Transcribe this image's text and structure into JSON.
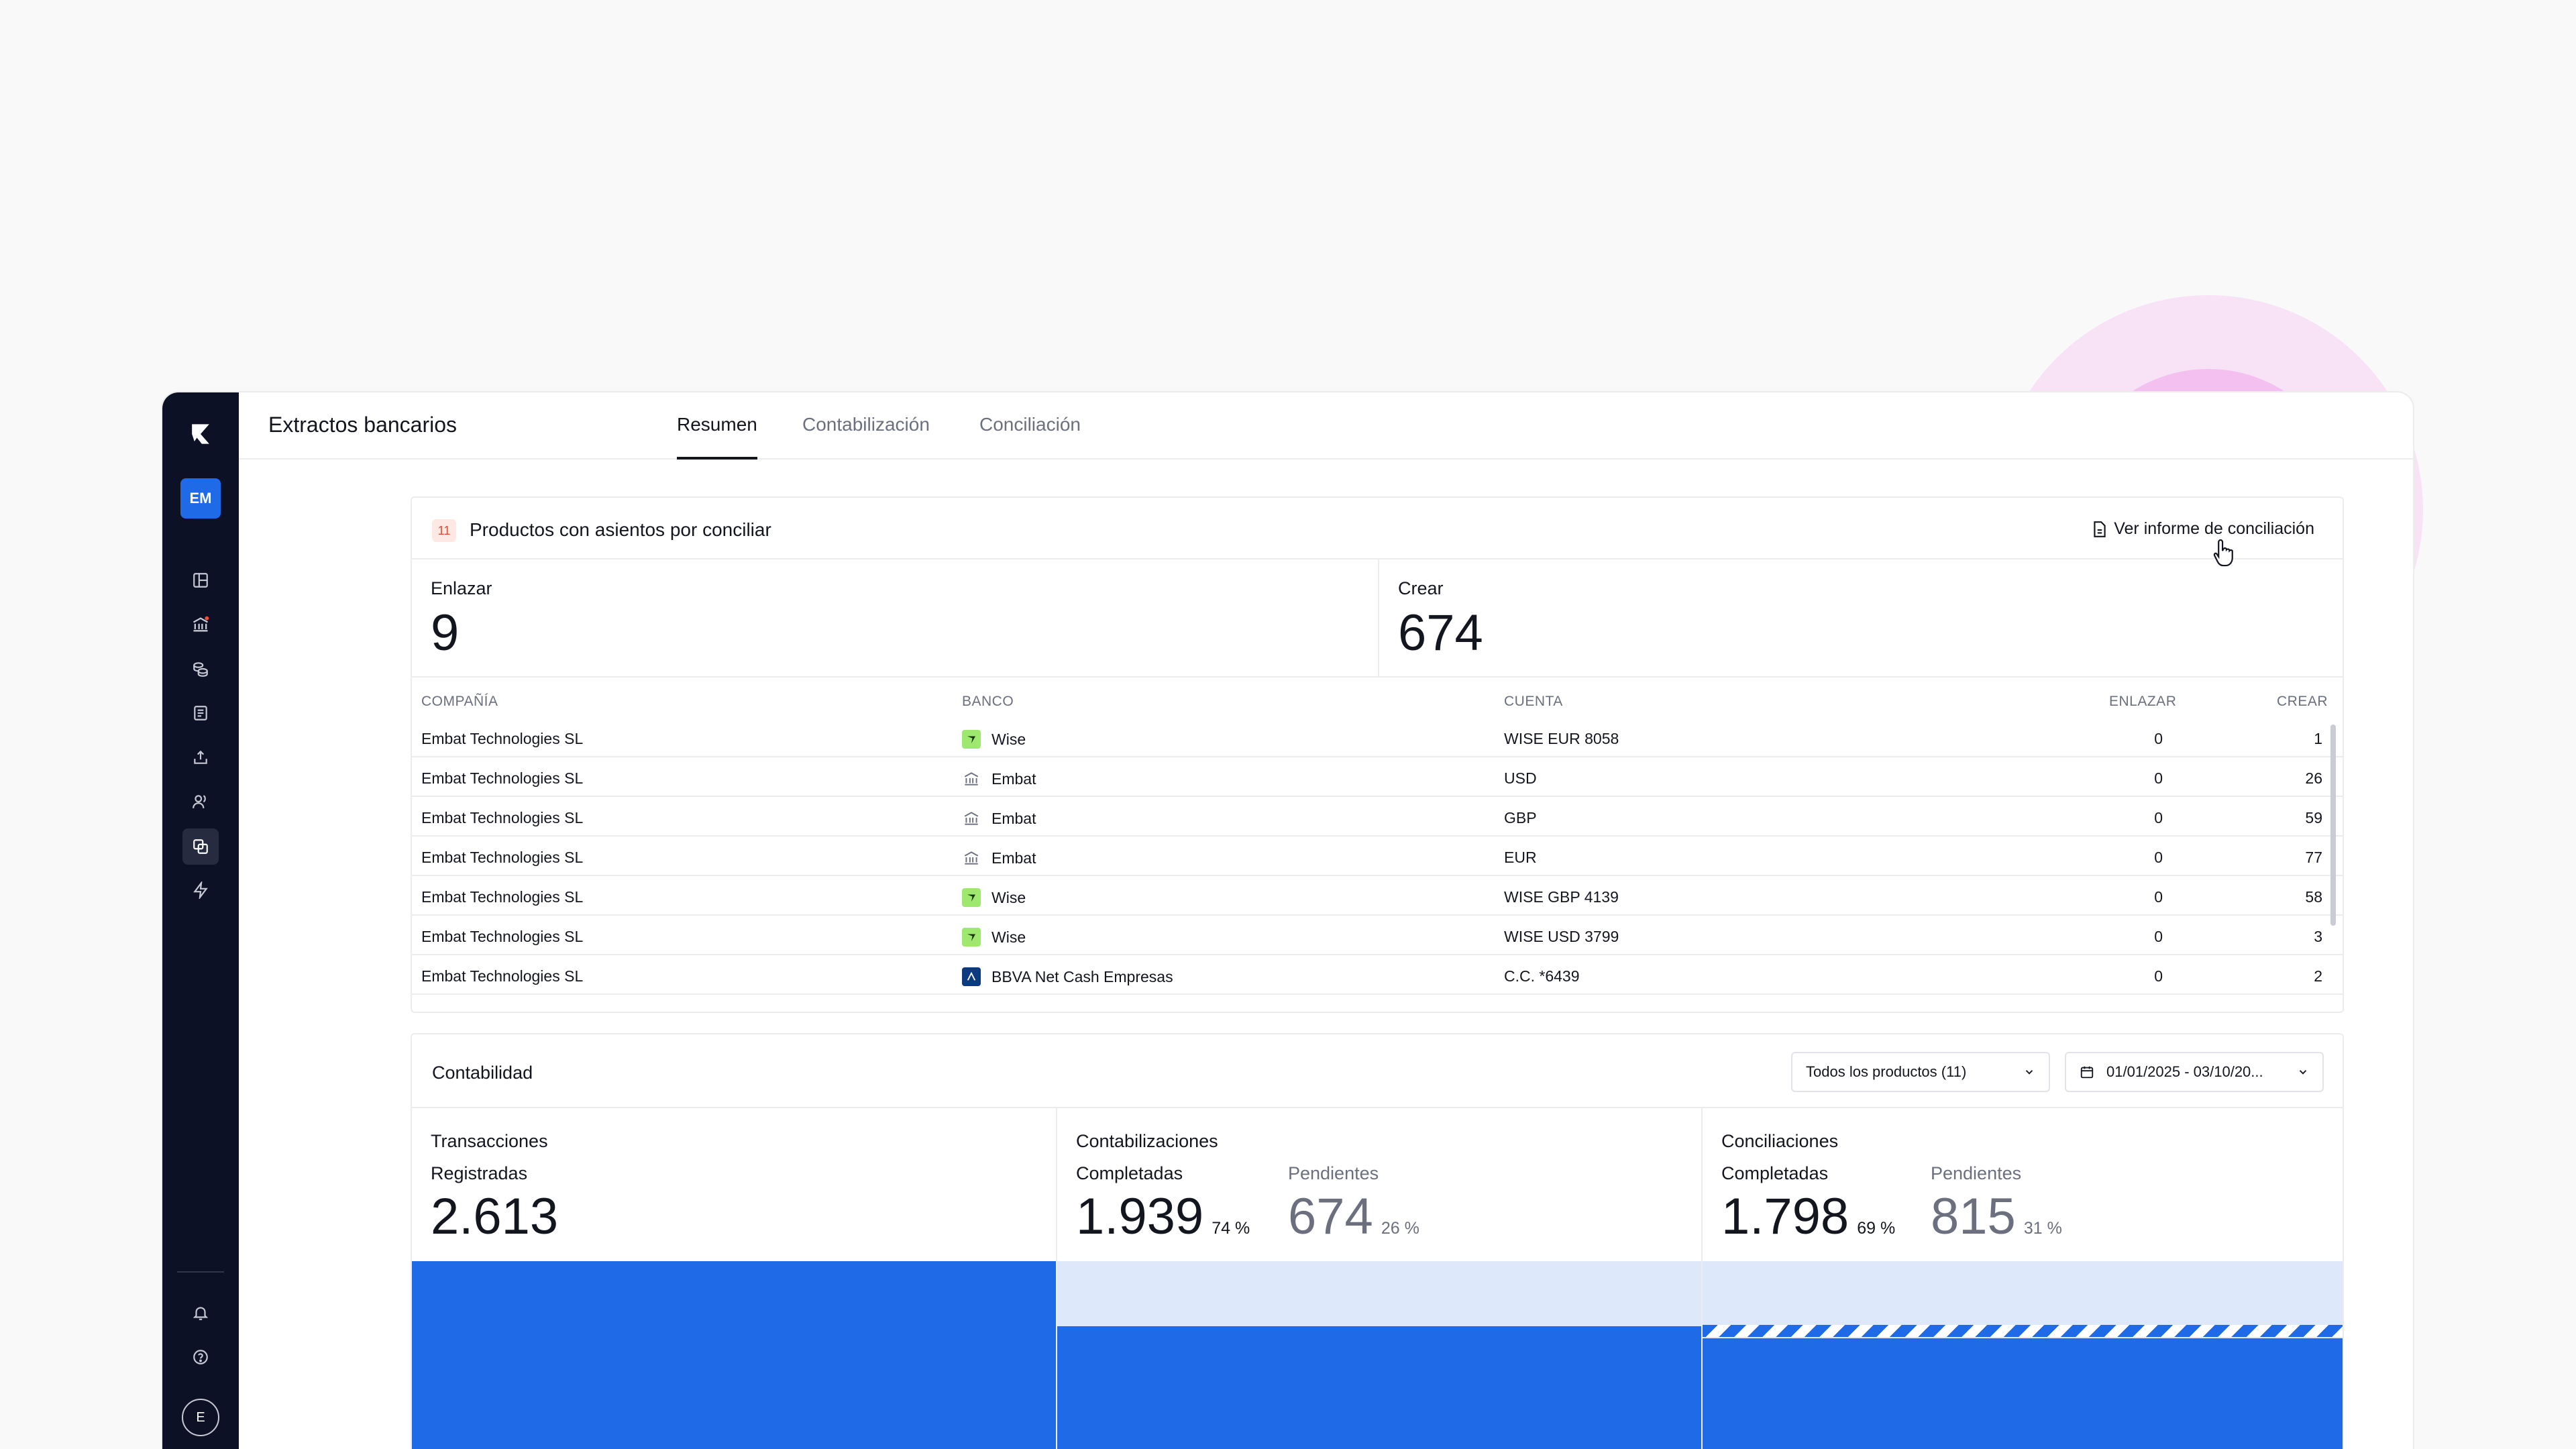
{
  "app": {
    "title": "Extractos bancarios",
    "tabs": [
      {
        "label": "Resumen",
        "active": true
      },
      {
        "label": "Contabilización",
        "active": false
      },
      {
        "label": "Conciliación",
        "active": false
      }
    ],
    "user_initials": "EM",
    "profile_initial": "E"
  },
  "sidebar": {
    "icons": [
      "dashboard-icon",
      "bank-icon",
      "coins-icon",
      "ledger-icon",
      "upload-icon",
      "users-icon",
      "reconcile-icon",
      "bolt-icon"
    ],
    "bottom_icons": [
      "bell-icon",
      "help-icon"
    ]
  },
  "pending": {
    "count": "11",
    "title": "Productos con asientos por conciliar",
    "report_button": "Ver informe de conciliación",
    "link_label": "Enlazar",
    "link_value": "9",
    "create_label": "Crear",
    "create_value": "674"
  },
  "table": {
    "headers": {
      "company": "COMPAÑÍA",
      "bank": "BANCO",
      "account": "CUENTA",
      "link": "ENLAZAR",
      "create": "CREAR"
    },
    "rows": [
      {
        "company": "Embat Technologies SL",
        "bank": "Wise",
        "bank_icon": "wise",
        "account": "WISE EUR 8058",
        "link": "0",
        "create": "1"
      },
      {
        "company": "Embat Technologies SL",
        "bank": "Embat",
        "bank_icon": "bank",
        "account": "USD",
        "link": "0",
        "create": "26"
      },
      {
        "company": "Embat Technologies SL",
        "bank": "Embat",
        "bank_icon": "bank",
        "account": "GBP",
        "link": "0",
        "create": "59"
      },
      {
        "company": "Embat Technologies SL",
        "bank": "Embat",
        "bank_icon": "bank",
        "account": "EUR",
        "link": "0",
        "create": "77"
      },
      {
        "company": "Embat Technologies SL",
        "bank": "Wise",
        "bank_icon": "wise",
        "account": "WISE GBP 4139",
        "link": "0",
        "create": "58"
      },
      {
        "company": "Embat Technologies SL",
        "bank": "Wise",
        "bank_icon": "wise",
        "account": "WISE USD 3799",
        "link": "0",
        "create": "3"
      },
      {
        "company": "Embat Technologies SL",
        "bank": "BBVA Net Cash Empresas",
        "bank_icon": "bbva",
        "account": "C.C. *6439",
        "link": "0",
        "create": "2"
      }
    ]
  },
  "accounting": {
    "title": "Contabilidad",
    "product_filter": "Todos los productos (11)",
    "date_filter": "01/01/2025 - 03/10/20...",
    "transactions": {
      "title": "Transacciones",
      "registered_label": "Registradas",
      "registered_value": "2.613"
    },
    "postings": {
      "title": "Contabilizaciones",
      "completed_label": "Completadas",
      "completed_value": "1.939",
      "completed_pct": "74 %",
      "pending_label": "Pendientes",
      "pending_value": "674",
      "pending_pct": "26 %",
      "completed_fraction": 0.74
    },
    "reconciliations": {
      "title": "Conciliaciones",
      "completed_label": "Completadas",
      "completed_value": "1.798",
      "completed_pct": "69 %",
      "pending_label": "Pendientes",
      "pending_value": "815",
      "pending_pct": "31 %",
      "completed_fraction": 0.69
    }
  },
  "colors": {
    "accent": "#1f6ae6",
    "sidebar": "#0d1126",
    "badge": "#d94b34",
    "highlight": "#f178e1"
  }
}
